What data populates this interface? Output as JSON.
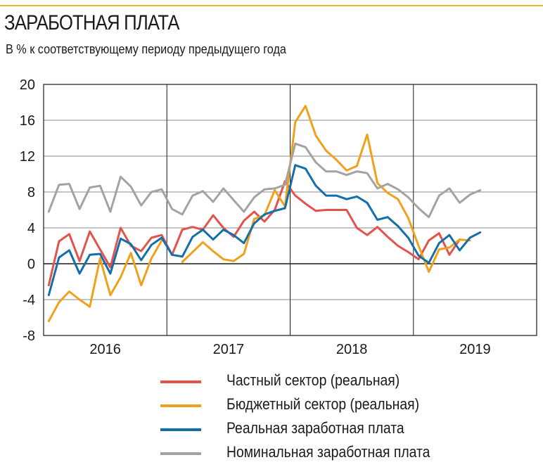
{
  "header": {
    "title": "ЗАРАБОТНАЯ ПЛАТА",
    "subtitle": "В % к соответствующему периоду предыдущего года"
  },
  "colors": {
    "accent_rule": "#f0b323",
    "private": "#e4524c",
    "budget": "#f0a11c",
    "real": "#136fa9",
    "nominal": "#a3a3a3"
  },
  "chart_data": {
    "type": "line",
    "title": "ЗАРАБОТНАЯ ПЛАТА",
    "subtitle": "В % к соответствующему периоду предыдущего года",
    "ylim": [
      -8,
      20
    ],
    "yticks": [
      20,
      16,
      12,
      8,
      4,
      0,
      -4,
      -8
    ],
    "ytick_labels": [
      "20",
      "16",
      "12",
      "8",
      "4",
      "0",
      "-4",
      "-8"
    ],
    "xlim": [
      0,
      48
    ],
    "x_groups": [
      {
        "label": "2016",
        "start": 0,
        "end": 12
      },
      {
        "label": "2017",
        "start": 12,
        "end": 24
      },
      {
        "label": "2018",
        "start": 24,
        "end": 36
      },
      {
        "label": "2019",
        "start": 36,
        "end": 48
      }
    ],
    "grid": true,
    "legend_position": "bottom",
    "series": [
      {
        "name": "Частный сектор (реальная)",
        "color": "#e4524c",
        "x": [
          0.5,
          1.5,
          2.5,
          3.5,
          4.5,
          5.5,
          6.5,
          7.5,
          8.5,
          9.5,
          10.5,
          11.5,
          12.5,
          13.5,
          14.5,
          15.5,
          16.5,
          17.5,
          18.5,
          19.5,
          20.5,
          21.5,
          22.5,
          23.5,
          24.5,
          25.5,
          26.5,
          27.5,
          28.5,
          29.5,
          30.5,
          31.5,
          32.5,
          33.5,
          34.5,
          35.5,
          36.5,
          37.5,
          38.5,
          39.5,
          40.5,
          41.5
        ],
        "y": [
          -2.4,
          2.5,
          3.3,
          0.3,
          3.6,
          1.6,
          -0.4,
          4.0,
          2.0,
          1.4,
          2.9,
          3.2,
          1.0,
          3.8,
          4.1,
          3.8,
          5.4,
          4.0,
          3.0,
          4.8,
          5.8,
          4.7,
          6.0,
          9.2,
          7.6,
          6.7,
          5.9,
          6.0,
          6.0,
          6.0,
          4.0,
          3.2,
          4.1,
          3.0,
          2.0,
          1.3,
          0.5,
          2.6,
          3.4,
          1.0,
          2.7,
          null
        ],
        "values": [
          -2.4,
          2.5,
          3.3,
          0.3,
          3.6,
          1.6,
          -0.4,
          4.0,
          2.0,
          1.4,
          2.9,
          3.2,
          1.0,
          3.8,
          4.1,
          3.8,
          5.4,
          4.0,
          3.0,
          4.8,
          5.8,
          4.7,
          6.0,
          9.2,
          7.6,
          6.7,
          5.9,
          6.0,
          6.0,
          6.0,
          4.0,
          3.2,
          4.1,
          3.0,
          2.0,
          1.3,
          0.5,
          2.6,
          3.4,
          1.0,
          2.7,
          null
        ]
      },
      {
        "name": "Бюджетный сектор (реальная)",
        "color": "#f0a11c",
        "x": [
          0.5,
          1.5,
          2.5,
          3.5,
          4.5,
          5.5,
          6.5,
          7.5,
          8.5,
          9.5,
          10.5,
          11.5,
          12.5,
          13.5,
          14.5,
          15.5,
          16.5,
          17.5,
          18.5,
          19.5,
          20.5,
          21.5,
          22.5,
          23.5,
          24.5,
          25.5,
          26.5,
          27.5,
          28.5,
          29.5,
          30.5,
          31.5,
          32.5,
          33.5,
          34.5,
          35.5,
          36.5,
          37.5,
          38.5,
          39.5,
          40.5,
          41.5
        ],
        "y": [
          -6.4,
          -4.3,
          -3.1,
          -4.0,
          -4.8,
          0.6,
          -3.5,
          -1.5,
          1.2,
          -2.4,
          0.6,
          2.6,
          null,
          0.2,
          1.3,
          2.4,
          1.4,
          0.5,
          0.3,
          1.1,
          5.0,
          5.4,
          8.2,
          6.4,
          15.8,
          17.6,
          14.3,
          12.6,
          11.6,
          10.4,
          10.9,
          14.4,
          9.0,
          7.9,
          7.2,
          5.1,
          2.0,
          -0.9,
          1.6,
          1.8,
          2.7,
          2.6
        ],
        "values": [
          -6.4,
          -4.3,
          -3.1,
          -4.0,
          -4.8,
          0.6,
          -3.5,
          -1.5,
          1.2,
          -2.4,
          0.6,
          2.6,
          null,
          0.2,
          1.3,
          2.4,
          1.4,
          0.5,
          0.3,
          1.1,
          5.0,
          5.4,
          8.2,
          6.4,
          15.8,
          17.6,
          14.3,
          12.6,
          11.6,
          10.4,
          10.9,
          14.4,
          9.0,
          7.9,
          7.2,
          5.1,
          2.0,
          -0.9,
          1.6,
          1.8,
          2.7,
          2.6
        ]
      },
      {
        "name": "Реальная заработная плата",
        "color": "#136fa9",
        "x": [
          0.5,
          1.5,
          2.5,
          3.5,
          4.5,
          5.5,
          6.5,
          7.5,
          8.5,
          9.5,
          10.5,
          11.5,
          12.5,
          13.5,
          14.5,
          15.5,
          16.5,
          17.5,
          18.5,
          19.5,
          20.5,
          21.5,
          22.5,
          23.5,
          24.5,
          25.5,
          26.5,
          27.5,
          28.5,
          29.5,
          30.5,
          31.5,
          32.5,
          33.5,
          34.5,
          35.5,
          36.5,
          37.5,
          38.5,
          39.5,
          40.5,
          41.5,
          42.5
        ],
        "y": [
          -3.5,
          0.7,
          1.5,
          -1.1,
          1.0,
          1.1,
          -1.1,
          2.8,
          2.2,
          0.4,
          2.1,
          2.9,
          1.0,
          0.8,
          3.0,
          3.8,
          2.7,
          3.8,
          3.2,
          2.3,
          4.5,
          5.5,
          5.9,
          6.2,
          11.0,
          10.6,
          8.7,
          7.6,
          7.6,
          7.2,
          7.5,
          6.8,
          4.9,
          5.2,
          4.2,
          2.9,
          0.9,
          0.1,
          2.3,
          3.2,
          1.5,
          2.9,
          3.5
        ],
        "values": [
          -3.5,
          0.7,
          1.5,
          -1.1,
          1.0,
          1.1,
          -1.1,
          2.8,
          2.2,
          0.4,
          2.1,
          2.9,
          1.0,
          0.8,
          3.0,
          3.8,
          2.7,
          3.8,
          3.2,
          2.3,
          4.5,
          5.5,
          5.9,
          6.2,
          11.0,
          10.6,
          8.7,
          7.6,
          7.6,
          7.2,
          7.5,
          6.8,
          4.9,
          5.2,
          4.2,
          2.9,
          0.9,
          0.1,
          2.3,
          3.2,
          1.5,
          2.9,
          3.5
        ]
      },
      {
        "name": "Номинальная заработная плата",
        "color": "#a3a3a3",
        "x": [
          0.5,
          1.5,
          2.5,
          3.5,
          4.5,
          5.5,
          6.5,
          7.5,
          8.5,
          9.5,
          10.5,
          11.5,
          12.5,
          13.5,
          14.5,
          15.5,
          16.5,
          17.5,
          18.5,
          19.5,
          20.5,
          21.5,
          22.5,
          23.5,
          24.5,
          25.5,
          26.5,
          27.5,
          28.5,
          29.5,
          30.5,
          31.5,
          32.5,
          33.5,
          34.5,
          35.5,
          36.5,
          37.5,
          38.5,
          39.5,
          40.5,
          41.5,
          42.5
        ],
        "y": [
          5.8,
          8.8,
          8.9,
          6.1,
          8.5,
          8.7,
          5.8,
          9.7,
          8.6,
          6.5,
          8.0,
          8.3,
          6.1,
          5.5,
          7.6,
          8.1,
          6.9,
          8.4,
          7.1,
          5.8,
          7.4,
          8.3,
          8.4,
          8.8,
          13.4,
          13.0,
          11.3,
          10.3,
          10.3,
          9.9,
          10.3,
          10.1,
          8.4,
          8.9,
          8.3,
          7.4,
          6.2,
          5.2,
          7.6,
          8.4,
          6.8,
          7.7,
          8.2
        ],
        "values": [
          5.8,
          8.8,
          8.9,
          6.1,
          8.5,
          8.7,
          5.8,
          9.7,
          8.6,
          6.5,
          8.0,
          8.3,
          6.1,
          5.5,
          7.6,
          8.1,
          6.9,
          8.4,
          7.1,
          5.8,
          7.4,
          8.3,
          8.4,
          8.8,
          13.4,
          13.0,
          11.3,
          10.3,
          10.3,
          9.9,
          10.3,
          10.1,
          8.4,
          8.9,
          8.3,
          7.4,
          6.2,
          5.2,
          7.6,
          8.4,
          6.8,
          7.7,
          8.2
        ]
      }
    ]
  },
  "legend": {
    "items": [
      {
        "label": "Частный сектор (реальная)",
        "color": "#e4524c"
      },
      {
        "label": "Бюджетный сектор (реальная)",
        "color": "#f0a11c"
      },
      {
        "label": "Реальная заработная плата",
        "color": "#136fa9"
      },
      {
        "label": "Номинальная заработная плата",
        "color": "#a3a3a3"
      }
    ]
  }
}
